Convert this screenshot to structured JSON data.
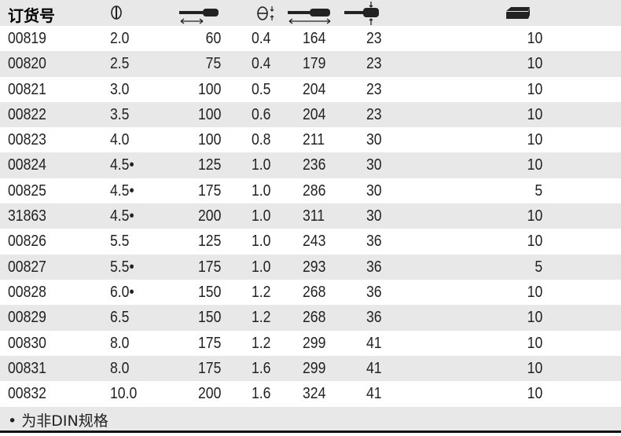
{
  "header": {
    "order_no": "订货号",
    "icons": [
      "blade-width-icon",
      "blade-length-icon",
      "blade-thickness-icon",
      "total-length-icon",
      "handle-diameter-icon",
      "package-quantity-icon"
    ]
  },
  "rows": [
    [
      "00819",
      "2.0",
      "60",
      "0.4",
      "164",
      "23",
      "10"
    ],
    [
      "00820",
      "2.5",
      "75",
      "0.4",
      "179",
      "23",
      "10"
    ],
    [
      "00821",
      "3.0",
      "100",
      "0.5",
      "204",
      "23",
      "10"
    ],
    [
      "00822",
      "3.5",
      "100",
      "0.6",
      "204",
      "23",
      "10"
    ],
    [
      "00823",
      "4.0",
      "100",
      "0.8",
      "211",
      "30",
      "10"
    ],
    [
      "00824",
      "4.5•",
      "125",
      "1.0",
      "236",
      "30",
      "10"
    ],
    [
      "00825",
      "4.5•",
      "175",
      "1.0",
      "286",
      "30",
      "5"
    ],
    [
      "31863",
      "4.5•",
      "200",
      "1.0",
      "311",
      "30",
      "10"
    ],
    [
      "00826",
      "5.5",
      "125",
      "1.0",
      "243",
      "36",
      "10"
    ],
    [
      "00827",
      "5.5•",
      "175",
      "1.0",
      "293",
      "36",
      "5"
    ],
    [
      "00828",
      "6.0•",
      "150",
      "1.2",
      "268",
      "36",
      "10"
    ],
    [
      "00829",
      "6.5",
      "150",
      "1.2",
      "268",
      "36",
      "10"
    ],
    [
      "00830",
      "8.0",
      "175",
      "1.2",
      "299",
      "41",
      "10"
    ],
    [
      "00831",
      "8.0",
      "175",
      "1.6",
      "299",
      "41",
      "10"
    ],
    [
      "00832",
      "10.0",
      "200",
      "1.6",
      "324",
      "41",
      "10"
    ]
  ],
  "footnote": "• 为非DIN规格"
}
